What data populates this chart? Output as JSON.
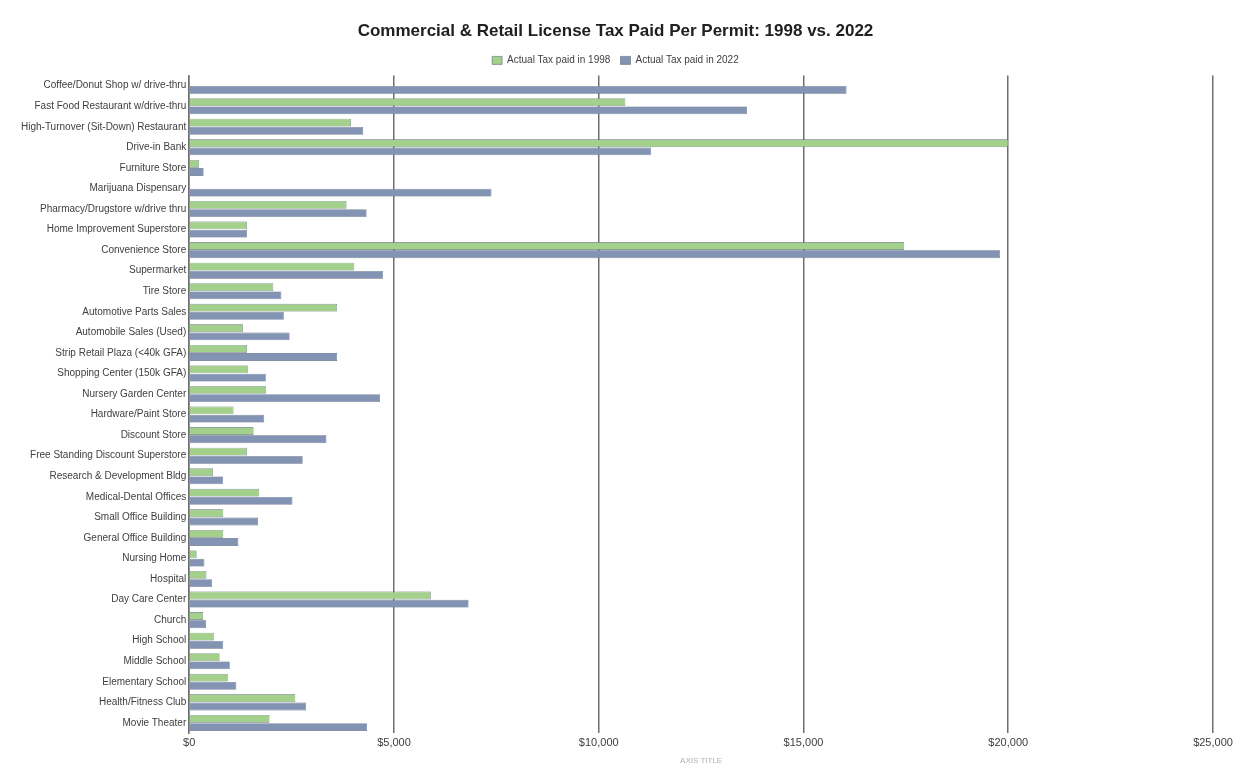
{
  "chart_data": {
    "type": "bar",
    "orientation": "horizontal",
    "title": "Commercial & Retail License Tax Paid Per Permit: 1998 vs. 2022",
    "xlabel": "AXIS TITLE",
    "categories": [
      "Coffee/Donut Shop w/ drive-thru",
      "Fast Food Restaurant w/drive-thru",
      "High-Turnover (Sit-Down) Restaurant",
      "Drive-in Bank",
      "Furniture Store",
      "Marijuana Dispensary",
      "Pharmacy/Drugstore w/drive thru",
      "Home Improvement Superstore",
      "Convenience Store",
      "Supermarket",
      "Tire Store",
      "Automotive Parts Sales",
      "Automobile Sales (Used)",
      "Strip Retail Plaza (<40k GFA)",
      "Shopping Center (150k GFA)",
      "Nursery Garden Center",
      "Hardware/Paint Store",
      "Discount Store",
      "Free Standing Discount Superstore",
      "Research & Development Bldg",
      "Medical-Dental Offices",
      "Small Office Building",
      "General Office Building",
      "Nursing Home",
      "Hospital",
      "Day Care Center",
      "Church",
      "High School",
      "Middle School",
      "Elementary School",
      "Health/Fitness Club",
      "Movie Theater"
    ],
    "series": [
      {
        "name": "Actual Tax paid in 1998",
        "color": "#a3d08a",
        "values": [
          null,
          10650,
          3950,
          20000,
          240,
          null,
          3840,
          1410,
          17450,
          4030,
          2050,
          3610,
          1310,
          1410,
          1430,
          1870,
          1080,
          1570,
          1410,
          580,
          1710,
          830,
          830,
          180,
          420,
          5900,
          340,
          610,
          740,
          940,
          2590,
          1960
        ]
      },
      {
        "name": "Actual Tax paid in 2022",
        "color": "#8393b3",
        "values": [
          16050,
          13620,
          4250,
          11280,
          350,
          7380,
          4330,
          1410,
          19800,
          4730,
          2250,
          2310,
          2450,
          3610,
          1870,
          4660,
          1830,
          3350,
          2770,
          830,
          2520,
          1680,
          1200,
          370,
          560,
          6820,
          410,
          830,
          990,
          1150,
          2850,
          4340
        ]
      }
    ],
    "xlim": [
      0,
      25000
    ],
    "xticks": [
      {
        "value": 0,
        "label": "$0"
      },
      {
        "value": 5000,
        "label": "$5,000"
      },
      {
        "value": 10000,
        "label": "$10,000"
      },
      {
        "value": 15000,
        "label": "$15,000"
      },
      {
        "value": 20000,
        "label": "$20,000"
      },
      {
        "value": 25000,
        "label": "$25,000"
      }
    ],
    "grid": "x",
    "legend": "top"
  }
}
